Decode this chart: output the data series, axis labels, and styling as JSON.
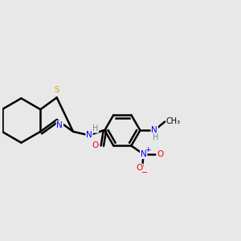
{
  "background_color": "#e8e8e8",
  "bond_color": "#000000",
  "atom_colors": {
    "N": "#0000ff",
    "O": "#ff0000",
    "S": "#ccaa00",
    "H": "#4a9a9a",
    "C": "#000000"
  },
  "figsize": [
    3.0,
    3.0
  ],
  "dpi": 100
}
